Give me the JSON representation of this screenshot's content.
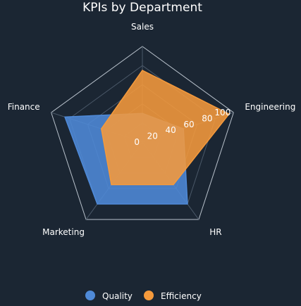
{
  "chart_data": {
    "type": "radar",
    "title": "KPIs by Department",
    "categories": [
      "Sales",
      "Engineering",
      "HR",
      "Marketing",
      "Finance"
    ],
    "radial_range": [
      0,
      100
    ],
    "radial_ticks": [
      0,
      20,
      40,
      60,
      80,
      100
    ],
    "series": [
      {
        "name": "Quality",
        "color": "#4f8ad8",
        "values": [
          30,
          45,
          80,
          80,
          85
        ]
      },
      {
        "name": "Efficiency",
        "color": "#f59a3c",
        "values": [
          75,
          95,
          55,
          55,
          45
        ]
      }
    ],
    "legend_position": "bottom",
    "grid": true
  }
}
